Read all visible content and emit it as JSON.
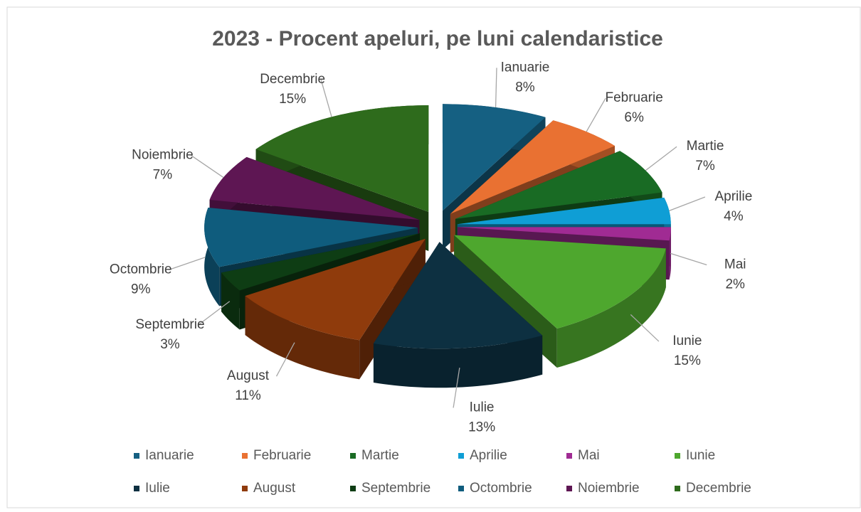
{
  "chart_data": {
    "type": "pie3d",
    "title": "2023 - Procent apeluri, pe luni calendaristice",
    "categories": [
      "Ianuarie",
      "Februarie",
      "Martie",
      "Aprilie",
      "Mai",
      "Iunie",
      "Iulie",
      "August",
      "Septembrie",
      "Octombrie",
      "Noiembrie",
      "Decembrie"
    ],
    "values": [
      8,
      6,
      7,
      4,
      2,
      15,
      13,
      11,
      3,
      9,
      7,
      15
    ],
    "value_labels": [
      "8%",
      "6%",
      "7%",
      "4%",
      "2%",
      "15%",
      "13%",
      "11%",
      "3%",
      "9%",
      "7%",
      "15%"
    ],
    "colors": [
      "#156082",
      "#e97132",
      "#196b24",
      "#0f9ed5",
      "#a02b93",
      "#4ea72e",
      "#0d3041",
      "#8f3b0c",
      "#0e3d14",
      "#0f5c7d",
      "#5e1653",
      "#2e6b1c"
    ],
    "legend": "bottom"
  }
}
